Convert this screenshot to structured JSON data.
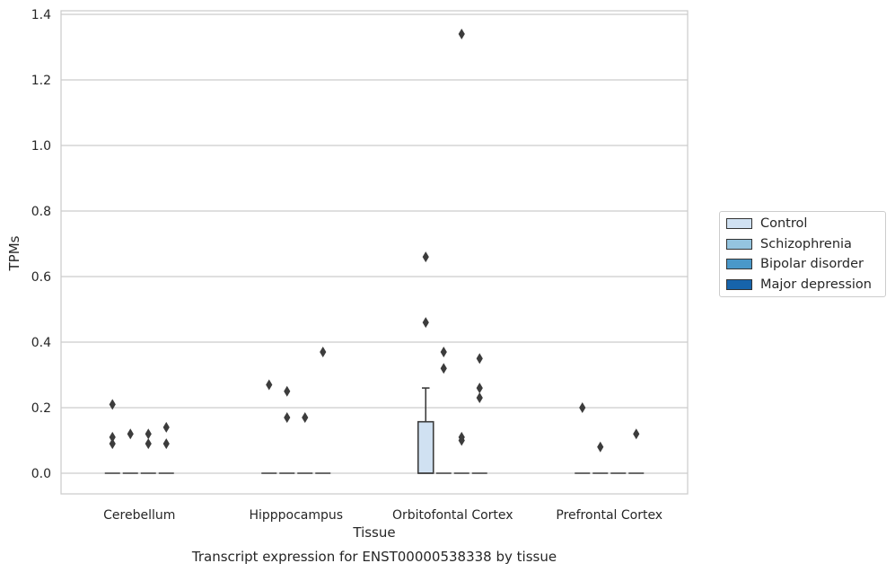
{
  "chart_data": {
    "type": "box",
    "title": "Transcript expression for ENST00000538338 by tissue",
    "xlabel": "Tissue",
    "ylabel": "TPMs",
    "categories": [
      "Cerebellum",
      "Hipppocampus",
      "Orbitofontal Cortex",
      "Prefrontal Cortex"
    ],
    "ylim": [
      -0.065,
      1.41
    ],
    "yticks": [
      0.0,
      0.2,
      0.4,
      0.6,
      0.8,
      1.0,
      1.2,
      1.4
    ],
    "ytick_labels": [
      "0.0",
      "0.2",
      "0.4",
      "0.6",
      "0.8",
      "1.0",
      "1.2",
      "1.4"
    ],
    "grid": true,
    "legend_position": "right",
    "series": [
      {
        "name": "Control",
        "color": "#d0e1f2",
        "boxes": [
          {
            "q1": 0,
            "median": 0,
            "q3": 0,
            "whisker_low": 0,
            "whisker_high": 0,
            "outliers": [
              0.21,
              0.11,
              0.09
            ]
          },
          {
            "q1": 0,
            "median": 0,
            "q3": 0,
            "whisker_low": 0,
            "whisker_high": 0,
            "outliers": [
              0.27
            ]
          },
          {
            "q1": 0,
            "median": 0,
            "q3": 0.157,
            "whisker_low": 0,
            "whisker_high": 0.26,
            "outliers": [
              0.66,
              0.46
            ]
          },
          {
            "q1": 0,
            "median": 0,
            "q3": 0,
            "whisker_low": 0,
            "whisker_high": 0,
            "outliers": [
              0.2
            ]
          }
        ]
      },
      {
        "name": "Schizophrenia",
        "color": "#94c4df",
        "boxes": [
          {
            "q1": 0,
            "median": 0,
            "q3": 0,
            "whisker_low": 0,
            "whisker_high": 0,
            "outliers": [
              0.12
            ]
          },
          {
            "q1": 0,
            "median": 0,
            "q3": 0,
            "whisker_low": 0,
            "whisker_high": 0,
            "outliers": [
              0.25,
              0.17
            ]
          },
          {
            "q1": 0,
            "median": 0,
            "q3": 0,
            "whisker_low": 0,
            "whisker_high": 0,
            "outliers": [
              0.37,
              0.32
            ]
          },
          {
            "q1": 0,
            "median": 0,
            "q3": 0,
            "whisker_low": 0,
            "whisker_high": 0,
            "outliers": [
              0.08
            ]
          }
        ]
      },
      {
        "name": "Bipolar disorder",
        "color": "#4a98c9",
        "boxes": [
          {
            "q1": 0,
            "median": 0,
            "q3": 0,
            "whisker_low": 0,
            "whisker_high": 0,
            "outliers": [
              0.12,
              0.09
            ]
          },
          {
            "q1": 0,
            "median": 0,
            "q3": 0,
            "whisker_low": 0,
            "whisker_high": 0,
            "outliers": [
              0.17
            ]
          },
          {
            "q1": 0,
            "median": 0,
            "q3": 0,
            "whisker_low": 0,
            "whisker_high": 0,
            "outliers": [
              1.34,
              0.11,
              0.1
            ]
          },
          {
            "q1": 0,
            "median": 0,
            "q3": 0,
            "whisker_low": 0,
            "whisker_high": 0,
            "outliers": []
          }
        ]
      },
      {
        "name": "Major depression",
        "color": "#1764ab",
        "boxes": [
          {
            "q1": 0,
            "median": 0,
            "q3": 0,
            "whisker_low": 0,
            "whisker_high": 0,
            "outliers": [
              0.14,
              0.09
            ]
          },
          {
            "q1": 0,
            "median": 0,
            "q3": 0,
            "whisker_low": 0,
            "whisker_high": 0,
            "outliers": [
              0.37
            ]
          },
          {
            "q1": 0,
            "median": 0,
            "q3": 0,
            "whisker_low": 0,
            "whisker_high": 0,
            "outliers": [
              0.35,
              0.26,
              0.23
            ]
          },
          {
            "q1": 0,
            "median": 0,
            "q3": 0,
            "whisker_low": 0,
            "whisker_high": 0,
            "outliers": [
              0.12
            ]
          }
        ]
      }
    ]
  }
}
